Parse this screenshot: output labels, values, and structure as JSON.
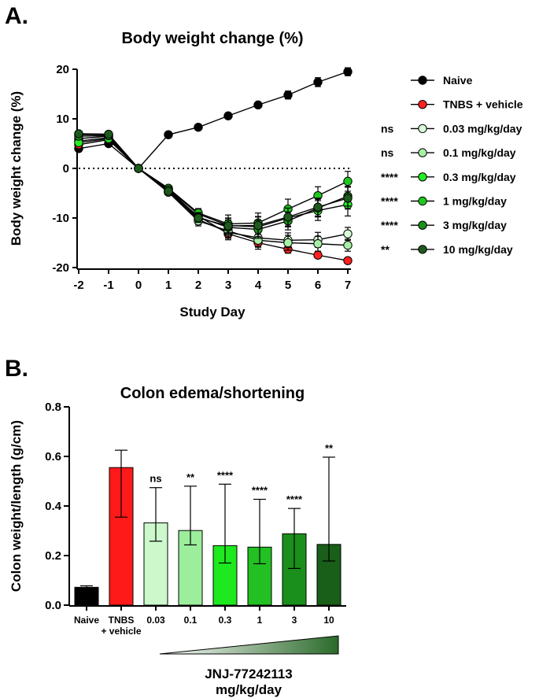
{
  "panel_a_label": "A.",
  "panel_b_label": "B.",
  "chart_data": [
    {
      "type": "line",
      "title": "Body weight change (%)",
      "xlabel": "Study Day",
      "ylabel": "Body weight change (%)",
      "xlim": [
        -2,
        7
      ],
      "ylim": [
        -20,
        20
      ],
      "x": [
        -2,
        -1,
        0,
        1,
        2,
        3,
        4,
        5,
        6,
        7
      ],
      "x_tick_labels": [
        "-2",
        "-1",
        "0",
        "1",
        "2",
        "3",
        "4",
        "5",
        "6",
        "7"
      ],
      "y_ticks": [
        20,
        10,
        0,
        -10,
        -20
      ],
      "y_tick_labels": [
        "20",
        "10",
        "0",
        "-10",
        "-20"
      ],
      "reference_line": 0,
      "series": [
        {
          "name": "Naive",
          "color": "#000000",
          "sig": "",
          "values": [
            4,
            5,
            0,
            6.8,
            8.3,
            10.6,
            12.8,
            14.8,
            17.4,
            19.5
          ],
          "err": [
            0.4,
            0.4,
            0,
            0.4,
            0.5,
            0.5,
            0.5,
            0.8,
            0.9,
            0.8
          ]
        },
        {
          "name": "TNBS + vehicle",
          "color": "#ff2020",
          "sig": "",
          "values": [
            4.8,
            5.8,
            0,
            -4.8,
            -9.6,
            -13.2,
            -15.0,
            -16.3,
            -17.5,
            -18.6
          ],
          "err": [
            0.3,
            0.3,
            0,
            0.4,
            0.6,
            0.8,
            0.9,
            0.8,
            0.5,
            0.4
          ]
        },
        {
          "name": "0.03 mg/kg/day",
          "color": "#d8fbd8",
          "sig": "ns",
          "values": [
            6.0,
            6.5,
            0,
            -4.5,
            -10.3,
            -12.9,
            -14.0,
            -14.5,
            -14.4,
            -13.2
          ],
          "err": [
            0.4,
            0.4,
            0,
            0.5,
            1.0,
            1.5,
            1.8,
            1.5,
            1.5,
            1.3
          ]
        },
        {
          "name": "0.1 mg/kg/day",
          "color": "#a6f0a6",
          "sig": "ns",
          "values": [
            5.5,
            6.2,
            0,
            -4.8,
            -10.6,
            -12.6,
            -14.5,
            -15.0,
            -15.2,
            -15.5
          ],
          "err": [
            0.4,
            0.4,
            0,
            0.5,
            1.0,
            1.5,
            1.8,
            1.5,
            1.5,
            1.2
          ]
        },
        {
          "name": "0.3 mg/kg/day",
          "color": "#22ee22",
          "sig": "****",
          "values": [
            5.2,
            6.0,
            0,
            -4.2,
            -9.2,
            -11.5,
            -11.8,
            -10.0,
            -8.5,
            -7.3
          ],
          "err": [
            0.4,
            0.4,
            0,
            0.5,
            0.9,
            1.5,
            2.0,
            1.8,
            2.0,
            2.3
          ]
        },
        {
          "name": "1 mg/kg/day",
          "color": "#1ec81e",
          "sig": "****",
          "values": [
            6.8,
            6.8,
            0,
            -4.0,
            -9.0,
            -11.2,
            -11.0,
            -8.2,
            -5.5,
            -2.6
          ],
          "err": [
            0.4,
            0.4,
            0,
            0.5,
            0.9,
            1.8,
            2.0,
            2.0,
            1.8,
            2.0
          ]
        },
        {
          "name": "3 mg/kg/day",
          "color": "#1a8f1a",
          "sig": "****",
          "values": [
            6.5,
            6.6,
            0,
            -4.3,
            -9.8,
            -11.9,
            -12.3,
            -10.6,
            -8.0,
            -5.6
          ],
          "err": [
            0.4,
            0.4,
            0,
            0.5,
            0.9,
            1.5,
            1.8,
            1.8,
            1.8,
            2.0
          ]
        },
        {
          "name": "10 mg/kg/day",
          "color": "#1e5a1e",
          "sig": "**",
          "values": [
            7.0,
            6.9,
            0,
            -4.6,
            -10.0,
            -11.6,
            -11.5,
            -9.8,
            -7.8,
            -6.0
          ],
          "err": [
            0.4,
            0.4,
            0,
            0.5,
            0.9,
            1.5,
            1.8,
            1.8,
            1.8,
            2.2
          ]
        }
      ]
    },
    {
      "type": "bar",
      "title": "Colon edema/shortening",
      "xlabel": "JNJ-77242113\nmg/kg/day",
      "xlabel_lines": [
        "JNJ-77242113",
        "mg/kg/day"
      ],
      "ylabel": "Colon weight/length (g/cm)",
      "ylim": [
        0,
        0.8
      ],
      "y_ticks": [
        0.8,
        0.6,
        0.4,
        0.2,
        0.0
      ],
      "y_tick_labels": [
        "0.8",
        "0.6",
        "0.4",
        "0.2",
        "0.0"
      ],
      "categories": [
        "Naive",
        "TNBS + vehicle",
        "0.03",
        "0.1",
        "0.3",
        "1",
        "3",
        "10"
      ],
      "category_lines": [
        [
          "Naive"
        ],
        [
          "TNBS",
          "+ vehicle"
        ],
        [
          "0.03"
        ],
        [
          "0.1"
        ],
        [
          "0.3"
        ],
        [
          "1"
        ],
        [
          "3"
        ],
        [
          "10"
        ]
      ],
      "values": [
        0.072,
        0.555,
        0.332,
        0.301,
        0.24,
        0.234,
        0.288,
        0.245
      ],
      "err_low": [
        0.067,
        0.355,
        0.258,
        0.243,
        0.17,
        0.167,
        0.148,
        0.178
      ],
      "err_high": [
        0.078,
        0.625,
        0.474,
        0.48,
        0.488,
        0.427,
        0.39,
        0.597
      ],
      "significance": [
        "",
        "",
        "ns",
        "**",
        "****",
        "****",
        "****",
        "**"
      ],
      "colors": [
        "#000000",
        "#ff1a1a",
        "#ccf8cc",
        "#9cee9c",
        "#1ee81e",
        "#22c022",
        "#1b8f1b",
        "#195e19"
      ]
    }
  ]
}
